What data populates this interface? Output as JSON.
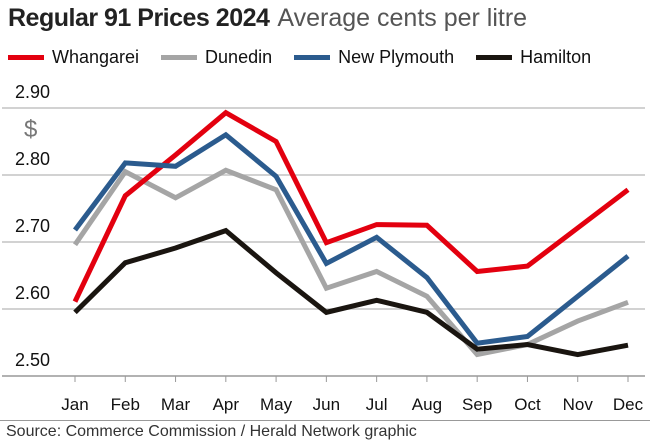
{
  "chart_data": {
    "type": "line",
    "title": "Regular 91 Prices 2024",
    "subtitle": "Average cents per litre",
    "ylabel": "$",
    "xlabel": "",
    "ylim": [
      2.5,
      2.9
    ],
    "yticks": [
      "2.90",
      "2.80",
      "2.70",
      "2.60",
      "2.50"
    ],
    "categories": [
      "Jan",
      "Feb",
      "Mar",
      "Apr",
      "May",
      "Jun",
      "Jul",
      "Aug",
      "Sep",
      "Oct",
      "Nov",
      "Dec"
    ],
    "grid": true,
    "legend": "top",
    "series": [
      {
        "name": "Whangarei",
        "color": "#e3000f",
        "values": [
          2.611,
          2.769,
          2.83,
          2.893,
          2.85,
          2.699,
          2.726,
          2.725,
          2.656,
          2.664,
          2.721,
          2.778
        ]
      },
      {
        "name": "Dunedin",
        "color": "#a5a5a5",
        "values": [
          2.696,
          2.805,
          2.766,
          2.807,
          2.778,
          2.631,
          2.656,
          2.619,
          2.532,
          2.547,
          2.582,
          2.61
        ]
      },
      {
        "name": "New Plymouth",
        "color": "#2b5b8e",
        "values": [
          2.718,
          2.818,
          2.813,
          2.86,
          2.798,
          2.668,
          2.707,
          2.647,
          2.549,
          2.559,
          2.619,
          2.679
        ]
      },
      {
        "name": "Hamilton",
        "color": "#1a1510",
        "values": [
          2.595,
          2.669,
          2.691,
          2.717,
          2.654,
          2.595,
          2.613,
          2.595,
          2.54,
          2.547,
          2.532,
          2.546
        ]
      }
    ],
    "source": "Source: Commerce Commission / Herald Network graphic"
  }
}
